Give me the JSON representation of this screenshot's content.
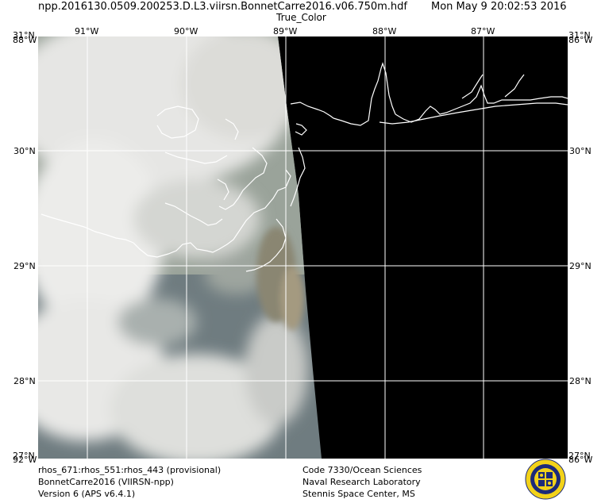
{
  "header": {
    "filename": "npp.2016130.0509.200253.D.L3.viirsn.BonnetCarre2016.v06.750m.hdf",
    "timestamp": "Mon May  9 20:02:53 2016",
    "product": "True_Color"
  },
  "axes": {
    "top_lon_labels": [
      "91°W",
      "90°W",
      "89°W",
      "88°W",
      "87°W"
    ],
    "lat_labels": [
      "30°N",
      "29°N",
      "28°N"
    ],
    "corner_top_left_a": "31°N",
    "corner_top_left_b": "88°W",
    "corner_top_right_a": "31°N",
    "corner_top_right_b": "86°W",
    "corner_bottom_left_a": "27°N",
    "corner_bottom_left_b": "92°W",
    "corner_bottom_right_a": "27°N",
    "corner_bottom_right_b": "86°W"
  },
  "footer": {
    "left": [
      "rhos_671:rhos_551:rhos_443 (provisional)",
      "BonnetCarre2016 (VIIRSN-npp)",
      "Version 6 (APS v6.4.1)"
    ],
    "right": [
      "Code 7330/Ocean Sciences",
      "Naval Research Laboratory",
      "Stennis Space Center, MS"
    ]
  },
  "colors": {
    "grid": "#ffffff",
    "coastline": "#ffffff",
    "no_data": "#000000",
    "cloud": "#e6e6e4",
    "sea": "#6f7c80"
  },
  "logo_icon": "naval-research-laboratory-seal-icon"
}
